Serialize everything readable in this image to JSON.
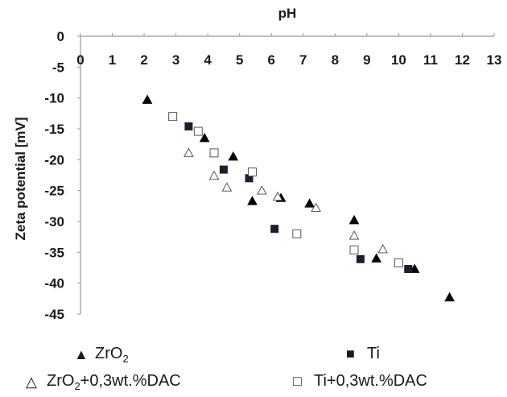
{
  "chart_data": {
    "type": "scatter",
    "title": "",
    "xlabel": "pH",
    "ylabel": "Zeta potential [mV]",
    "xlim": [
      0,
      13
    ],
    "ylim": [
      -45,
      0
    ],
    "xticks": [
      "0",
      "1",
      "2",
      "3",
      "4",
      "5",
      "6",
      "7",
      "8",
      "9",
      "10",
      "11",
      "12",
      "13"
    ],
    "yticks": [
      "0",
      "-5",
      "-10",
      "-15",
      "-20",
      "-25",
      "-30",
      "-35",
      "-40",
      "-45"
    ],
    "grid": false,
    "x_axis_position": "top",
    "legend_position": "bottom",
    "series": [
      {
        "name": "ZrO2",
        "marker": "filled-triangle",
        "color": "#000000",
        "points": [
          [
            2.1,
            -10.3
          ],
          [
            3.9,
            -16.5
          ],
          [
            4.8,
            -19.5
          ],
          [
            5.4,
            -26.7
          ],
          [
            6.3,
            -26.2
          ],
          [
            7.2,
            -27.1
          ],
          [
            8.6,
            -29.8
          ],
          [
            9.3,
            -36.0
          ],
          [
            10.5,
            -37.7
          ],
          [
            11.6,
            -42.3
          ]
        ]
      },
      {
        "name": "Ti",
        "marker": "filled-square",
        "color": "#1a1f2e",
        "points": [
          [
            3.4,
            -14.6
          ],
          [
            4.5,
            -21.6
          ],
          [
            5.3,
            -23.0
          ],
          [
            6.1,
            -31.2
          ],
          [
            8.8,
            -36.1
          ],
          [
            10.3,
            -37.7
          ]
        ]
      },
      {
        "name": "ZrO2+0,3wt.%DAC",
        "marker": "open-triangle",
        "color": "#333333",
        "points": [
          [
            3.4,
            -18.9
          ],
          [
            4.2,
            -22.6
          ],
          [
            4.6,
            -24.5
          ],
          [
            5.7,
            -25.0
          ],
          [
            6.2,
            -26.0
          ],
          [
            7.4,
            -27.8
          ],
          [
            8.6,
            -32.3
          ],
          [
            9.5,
            -34.5
          ]
        ]
      },
      {
        "name": "Ti+0,3wt.%DAC",
        "marker": "open-square",
        "color": "#333333",
        "points": [
          [
            2.9,
            -13.0
          ],
          [
            3.7,
            -15.4
          ],
          [
            4.2,
            -18.9
          ],
          [
            5.4,
            -22.0
          ],
          [
            6.8,
            -32.0
          ],
          [
            8.6,
            -34.6
          ],
          [
            10.0,
            -36.7
          ]
        ]
      }
    ]
  },
  "legend": {
    "zro2_base": "ZrO",
    "zro2_sub": "2",
    "ti": "Ti",
    "zro2_dac_base": "ZrO",
    "zro2_dac_sub": "2",
    "zro2_dac_suffix": "+0,3wt.%DAC",
    "ti_dac": "Ti+0,3wt.%DAC"
  }
}
